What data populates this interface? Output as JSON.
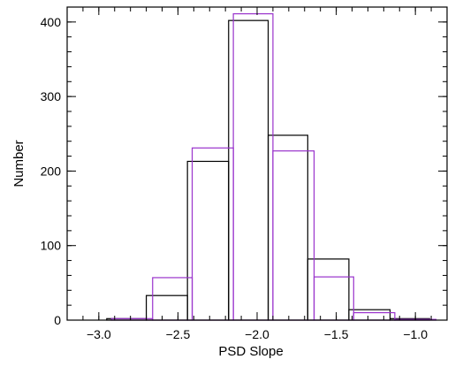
{
  "chart_data": {
    "type": "bar",
    "title": "",
    "xlabel": "PSD Slope",
    "ylabel": "Number",
    "xlim": [
      -3.2,
      -0.8
    ],
    "ylim": [
      0,
      420
    ],
    "x_ticks": [
      -3.0,
      -2.5,
      -2.0,
      -1.5,
      -1.0
    ],
    "x_tick_labels": [
      "−3.0",
      "−2.5",
      "−2.0",
      "−1.5",
      "−1.0"
    ],
    "y_ticks": [
      0,
      100,
      200,
      300,
      400
    ],
    "y_tick_labels": [
      "0",
      "100",
      "200",
      "300",
      "400"
    ],
    "x_minor_step": 0.1,
    "y_minor_step": 20,
    "grid": false,
    "legend": "none",
    "series": [
      {
        "color": "#000000",
        "bins": [
          {
            "x0": -2.95,
            "x1": -2.7,
            "value": 2
          },
          {
            "x0": -2.7,
            "x1": -2.44,
            "value": 33
          },
          {
            "x0": -2.44,
            "x1": -2.18,
            "value": 213
          },
          {
            "x0": -2.18,
            "x1": -1.93,
            "value": 402
          },
          {
            "x0": -1.93,
            "x1": -1.68,
            "value": 248
          },
          {
            "x0": -1.68,
            "x1": -1.42,
            "value": 82
          },
          {
            "x0": -1.42,
            "x1": -1.16,
            "value": 14
          },
          {
            "x0": -1.16,
            "x1": -0.91,
            "value": 2
          }
        ]
      },
      {
        "color": "#9932cc",
        "bins": [
          {
            "x0": -2.92,
            "x1": -2.66,
            "value": 2
          },
          {
            "x0": -2.66,
            "x1": -2.41,
            "value": 57
          },
          {
            "x0": -2.41,
            "x1": -2.15,
            "value": 231
          },
          {
            "x0": -2.15,
            "x1": -1.9,
            "value": 411
          },
          {
            "x0": -1.9,
            "x1": -1.64,
            "value": 227
          },
          {
            "x0": -1.64,
            "x1": -1.39,
            "value": 58
          },
          {
            "x0": -1.39,
            "x1": -1.13,
            "value": 10
          },
          {
            "x0": -1.13,
            "x1": -0.87,
            "value": 1
          }
        ]
      }
    ]
  }
}
